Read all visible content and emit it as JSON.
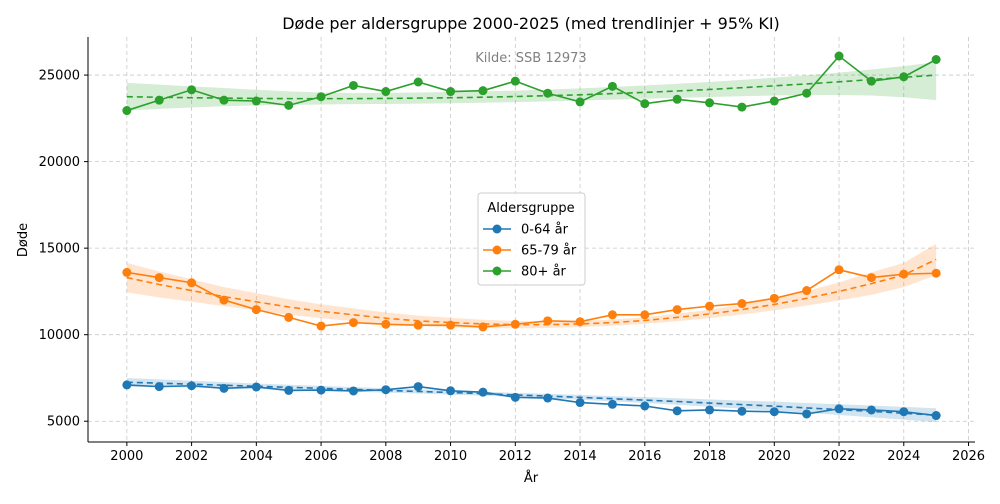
{
  "chart_data": {
    "type": "line",
    "title": "Døde per aldersgruppe 2000-2025 (med trendlinjer + 95% KI)",
    "annotation": "Kilde: SSB 12973",
    "xlabel": "År",
    "ylabel": "Døde",
    "xlim": [
      1998.8,
      2026.2
    ],
    "ylim": [
      3800,
      27200
    ],
    "xticks": [
      2000,
      2002,
      2004,
      2006,
      2008,
      2010,
      2012,
      2014,
      2016,
      2018,
      2020,
      2022,
      2024,
      2026
    ],
    "yticks": [
      5000,
      10000,
      15000,
      20000,
      25000
    ],
    "grid": true,
    "legend": {
      "title": "Aldersgruppe",
      "placement": "center"
    },
    "x": [
      2000,
      2001,
      2002,
      2003,
      2004,
      2005,
      2006,
      2007,
      2008,
      2009,
      2010,
      2011,
      2012,
      2013,
      2014,
      2015,
      2016,
      2017,
      2018,
      2019,
      2020,
      2021,
      2022,
      2023,
      2024,
      2025
    ],
    "series": [
      {
        "name": "0-64 år",
        "color": "#1f77b4",
        "values": [
          7100,
          7000,
          7050,
          6900,
          6980,
          6780,
          6800,
          6750,
          6820,
          7000,
          6760,
          6680,
          6380,
          6340,
          6080,
          5980,
          5880,
          5600,
          5650,
          5580,
          5550,
          5420,
          5720,
          5650,
          5550,
          5330
        ],
        "trend": [
          7250,
          7200,
          7140,
          7080,
          7020,
          6960,
          6900,
          6840,
          6780,
          6720,
          6660,
          6590,
          6520,
          6450,
          6380,
          6300,
          6220,
          6140,
          6050,
          5960,
          5870,
          5770,
          5670,
          5570,
          5460,
          5350
        ],
        "ci_lower": [
          7000,
          6980,
          6940,
          6900,
          6860,
          6810,
          6760,
          6710,
          6650,
          6600,
          6540,
          6470,
          6400,
          6320,
          6240,
          6150,
          6050,
          5950,
          5840,
          5730,
          5610,
          5490,
          5360,
          5230,
          5090,
          4950
        ],
        "ci_upper": [
          7500,
          7420,
          7340,
          7260,
          7180,
          7110,
          7040,
          6970,
          6910,
          6840,
          6780,
          6710,
          6640,
          6580,
          6520,
          6450,
          6390,
          6330,
          6260,
          6190,
          6130,
          6050,
          5980,
          5910,
          5830,
          5750
        ]
      },
      {
        "name": "65-79 år",
        "color": "#ff7f0e",
        "values": [
          13600,
          13300,
          13000,
          12000,
          11450,
          11000,
          10500,
          10700,
          10600,
          10550,
          10550,
          10450,
          10600,
          10800,
          10750,
          11150,
          11150,
          11450,
          11650,
          11800,
          12100,
          12550,
          13750,
          13300,
          13500,
          13550
        ],
        "trend": [
          13300,
          12900,
          12550,
          12200,
          11900,
          11600,
          11350,
          11150,
          10950,
          10800,
          10700,
          10620,
          10580,
          10580,
          10620,
          10700,
          10820,
          11000,
          11200,
          11450,
          11750,
          12100,
          12500,
          12950,
          13450,
          14350
        ],
        "ci_lower": [
          12450,
          12150,
          11900,
          11650,
          11400,
          11150,
          10950,
          10780,
          10620,
          10500,
          10420,
          10380,
          10370,
          10390,
          10440,
          10520,
          10630,
          10780,
          10960,
          11170,
          11410,
          11680,
          11980,
          12300,
          12750,
          13450
        ],
        "ci_upper": [
          14150,
          13650,
          13200,
          12750,
          12400,
          12050,
          11750,
          11520,
          11280,
          11100,
          10980,
          10860,
          10790,
          10770,
          10800,
          10880,
          11010,
          11220,
          11440,
          11730,
          12090,
          12520,
          13020,
          13600,
          14150,
          15250
        ]
      },
      {
        "name": "80+ år",
        "color": "#2ca02c",
        "values": [
          22950,
          23550,
          24150,
          23550,
          23500,
          23250,
          23750,
          24400,
          24050,
          24600,
          24050,
          24100,
          24650,
          23950,
          23450,
          24350,
          23350,
          23600,
          23400,
          23150,
          23500,
          23950,
          26100,
          24650,
          24900,
          25900
        ],
        "trend": [
          23750,
          23720,
          23690,
          23670,
          23650,
          23640,
          23640,
          23640,
          23650,
          23670,
          23690,
          23720,
          23760,
          23810,
          23860,
          23930,
          24000,
          24080,
          24170,
          24270,
          24380,
          24490,
          24610,
          24740,
          24870,
          25000
        ],
        "ci_lower": [
          22950,
          23050,
          23130,
          23200,
          23250,
          23280,
          23300,
          23320,
          23330,
          23350,
          23370,
          23400,
          23440,
          23480,
          23530,
          23580,
          23630,
          23680,
          23730,
          23780,
          23820,
          23850,
          23850,
          23820,
          23720,
          23550
        ],
        "ci_upper": [
          24550,
          24450,
          24350,
          24250,
          24150,
          24060,
          23990,
          23960,
          23970,
          23990,
          24020,
          24060,
          24100,
          24160,
          24230,
          24310,
          24400,
          24500,
          24600,
          24720,
          24850,
          24990,
          25140,
          25320,
          25520,
          25750
        ]
      }
    ]
  }
}
